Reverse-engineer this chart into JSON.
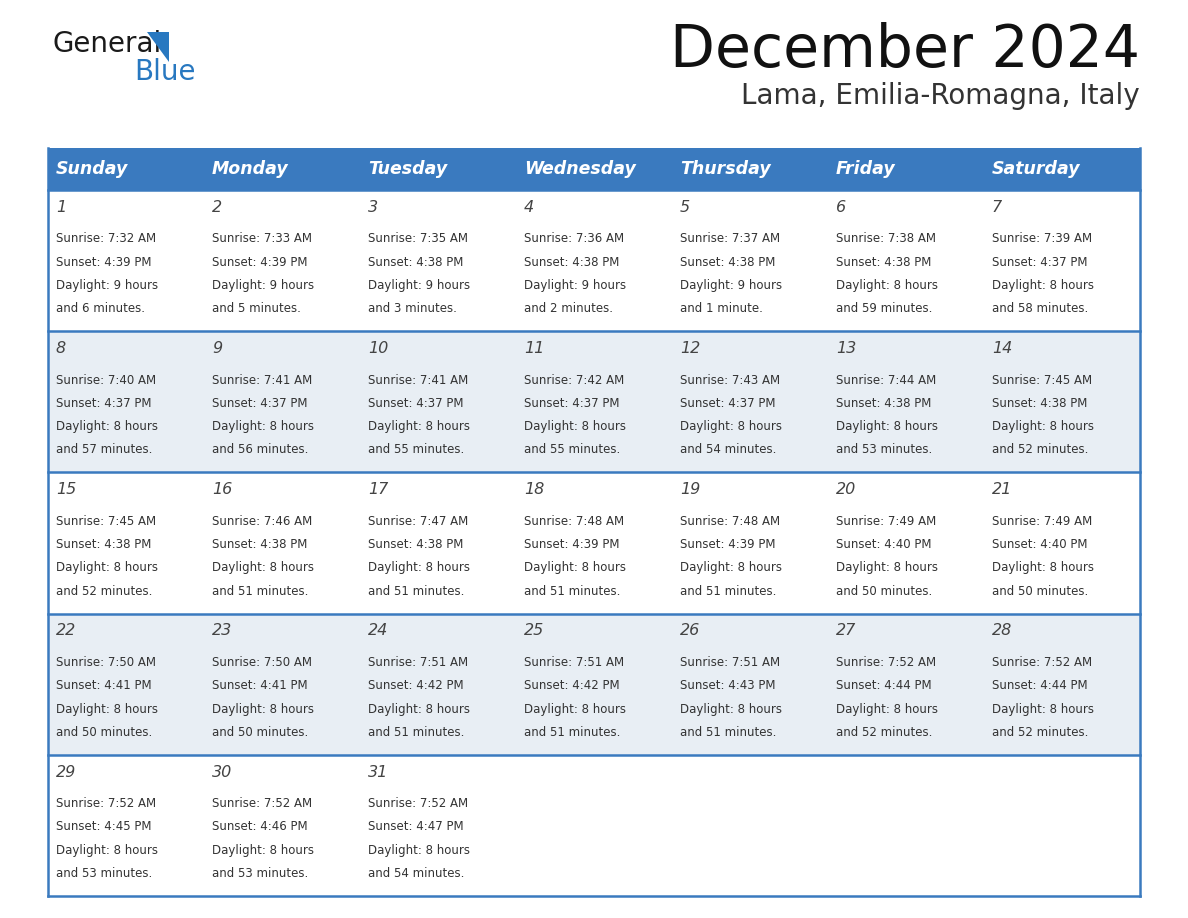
{
  "title": "December 2024",
  "subtitle": "Lama, Emilia-Romagna, Italy",
  "header_color": "#3a7abf",
  "header_text_color": "#ffffff",
  "bg_color": "#ffffff",
  "alt_row_color": "#e8eef4",
  "grid_color": "#3a7abf",
  "cell_text_color": "#333333",
  "day_num_color": "#444444",
  "logo_text_color": "#222222",
  "logo_blue_color": "#2878c0",
  "day_headers": [
    "Sunday",
    "Monday",
    "Tuesday",
    "Wednesday",
    "Thursday",
    "Friday",
    "Saturday"
  ],
  "days": [
    {
      "day": 1,
      "col": 0,
      "row": 0,
      "sunrise": "7:32 AM",
      "sunset": "4:39 PM",
      "daylight": "9 hours",
      "daylight2": "and 6 minutes."
    },
    {
      "day": 2,
      "col": 1,
      "row": 0,
      "sunrise": "7:33 AM",
      "sunset": "4:39 PM",
      "daylight": "9 hours",
      "daylight2": "and 5 minutes."
    },
    {
      "day": 3,
      "col": 2,
      "row": 0,
      "sunrise": "7:35 AM",
      "sunset": "4:38 PM",
      "daylight": "9 hours",
      "daylight2": "and 3 minutes."
    },
    {
      "day": 4,
      "col": 3,
      "row": 0,
      "sunrise": "7:36 AM",
      "sunset": "4:38 PM",
      "daylight": "9 hours",
      "daylight2": "and 2 minutes."
    },
    {
      "day": 5,
      "col": 4,
      "row": 0,
      "sunrise": "7:37 AM",
      "sunset": "4:38 PM",
      "daylight": "9 hours",
      "daylight2": "and 1 minute."
    },
    {
      "day": 6,
      "col": 5,
      "row": 0,
      "sunrise": "7:38 AM",
      "sunset": "4:38 PM",
      "daylight": "8 hours",
      "daylight2": "and 59 minutes."
    },
    {
      "day": 7,
      "col": 6,
      "row": 0,
      "sunrise": "7:39 AM",
      "sunset": "4:37 PM",
      "daylight": "8 hours",
      "daylight2": "and 58 minutes."
    },
    {
      "day": 8,
      "col": 0,
      "row": 1,
      "sunrise": "7:40 AM",
      "sunset": "4:37 PM",
      "daylight": "8 hours",
      "daylight2": "and 57 minutes."
    },
    {
      "day": 9,
      "col": 1,
      "row": 1,
      "sunrise": "7:41 AM",
      "sunset": "4:37 PM",
      "daylight": "8 hours",
      "daylight2": "and 56 minutes."
    },
    {
      "day": 10,
      "col": 2,
      "row": 1,
      "sunrise": "7:41 AM",
      "sunset": "4:37 PM",
      "daylight": "8 hours",
      "daylight2": "and 55 minutes."
    },
    {
      "day": 11,
      "col": 3,
      "row": 1,
      "sunrise": "7:42 AM",
      "sunset": "4:37 PM",
      "daylight": "8 hours",
      "daylight2": "and 55 minutes."
    },
    {
      "day": 12,
      "col": 4,
      "row": 1,
      "sunrise": "7:43 AM",
      "sunset": "4:37 PM",
      "daylight": "8 hours",
      "daylight2": "and 54 minutes."
    },
    {
      "day": 13,
      "col": 5,
      "row": 1,
      "sunrise": "7:44 AM",
      "sunset": "4:38 PM",
      "daylight": "8 hours",
      "daylight2": "and 53 minutes."
    },
    {
      "day": 14,
      "col": 6,
      "row": 1,
      "sunrise": "7:45 AM",
      "sunset": "4:38 PM",
      "daylight": "8 hours",
      "daylight2": "and 52 minutes."
    },
    {
      "day": 15,
      "col": 0,
      "row": 2,
      "sunrise": "7:45 AM",
      "sunset": "4:38 PM",
      "daylight": "8 hours",
      "daylight2": "and 52 minutes."
    },
    {
      "day": 16,
      "col": 1,
      "row": 2,
      "sunrise": "7:46 AM",
      "sunset": "4:38 PM",
      "daylight": "8 hours",
      "daylight2": "and 51 minutes."
    },
    {
      "day": 17,
      "col": 2,
      "row": 2,
      "sunrise": "7:47 AM",
      "sunset": "4:38 PM",
      "daylight": "8 hours",
      "daylight2": "and 51 minutes."
    },
    {
      "day": 18,
      "col": 3,
      "row": 2,
      "sunrise": "7:48 AM",
      "sunset": "4:39 PM",
      "daylight": "8 hours",
      "daylight2": "and 51 minutes."
    },
    {
      "day": 19,
      "col": 4,
      "row": 2,
      "sunrise": "7:48 AM",
      "sunset": "4:39 PM",
      "daylight": "8 hours",
      "daylight2": "and 51 minutes."
    },
    {
      "day": 20,
      "col": 5,
      "row": 2,
      "sunrise": "7:49 AM",
      "sunset": "4:40 PM",
      "daylight": "8 hours",
      "daylight2": "and 50 minutes."
    },
    {
      "day": 21,
      "col": 6,
      "row": 2,
      "sunrise": "7:49 AM",
      "sunset": "4:40 PM",
      "daylight": "8 hours",
      "daylight2": "and 50 minutes."
    },
    {
      "day": 22,
      "col": 0,
      "row": 3,
      "sunrise": "7:50 AM",
      "sunset": "4:41 PM",
      "daylight": "8 hours",
      "daylight2": "and 50 minutes."
    },
    {
      "day": 23,
      "col": 1,
      "row": 3,
      "sunrise": "7:50 AM",
      "sunset": "4:41 PM",
      "daylight": "8 hours",
      "daylight2": "and 50 minutes."
    },
    {
      "day": 24,
      "col": 2,
      "row": 3,
      "sunrise": "7:51 AM",
      "sunset": "4:42 PM",
      "daylight": "8 hours",
      "daylight2": "and 51 minutes."
    },
    {
      "day": 25,
      "col": 3,
      "row": 3,
      "sunrise": "7:51 AM",
      "sunset": "4:42 PM",
      "daylight": "8 hours",
      "daylight2": "and 51 minutes."
    },
    {
      "day": 26,
      "col": 4,
      "row": 3,
      "sunrise": "7:51 AM",
      "sunset": "4:43 PM",
      "daylight": "8 hours",
      "daylight2": "and 51 minutes."
    },
    {
      "day": 27,
      "col": 5,
      "row": 3,
      "sunrise": "7:52 AM",
      "sunset": "4:44 PM",
      "daylight": "8 hours",
      "daylight2": "and 52 minutes."
    },
    {
      "day": 28,
      "col": 6,
      "row": 3,
      "sunrise": "7:52 AM",
      "sunset": "4:44 PM",
      "daylight": "8 hours",
      "daylight2": "and 52 minutes."
    },
    {
      "day": 29,
      "col": 0,
      "row": 4,
      "sunrise": "7:52 AM",
      "sunset": "4:45 PM",
      "daylight": "8 hours",
      "daylight2": "and 53 minutes."
    },
    {
      "day": 30,
      "col": 1,
      "row": 4,
      "sunrise": "7:52 AM",
      "sunset": "4:46 PM",
      "daylight": "8 hours",
      "daylight2": "and 53 minutes."
    },
    {
      "day": 31,
      "col": 2,
      "row": 4,
      "sunrise": "7:52 AM",
      "sunset": "4:47 PM",
      "daylight": "8 hours",
      "daylight2": "and 54 minutes."
    }
  ],
  "num_rows": 5,
  "num_cols": 7
}
